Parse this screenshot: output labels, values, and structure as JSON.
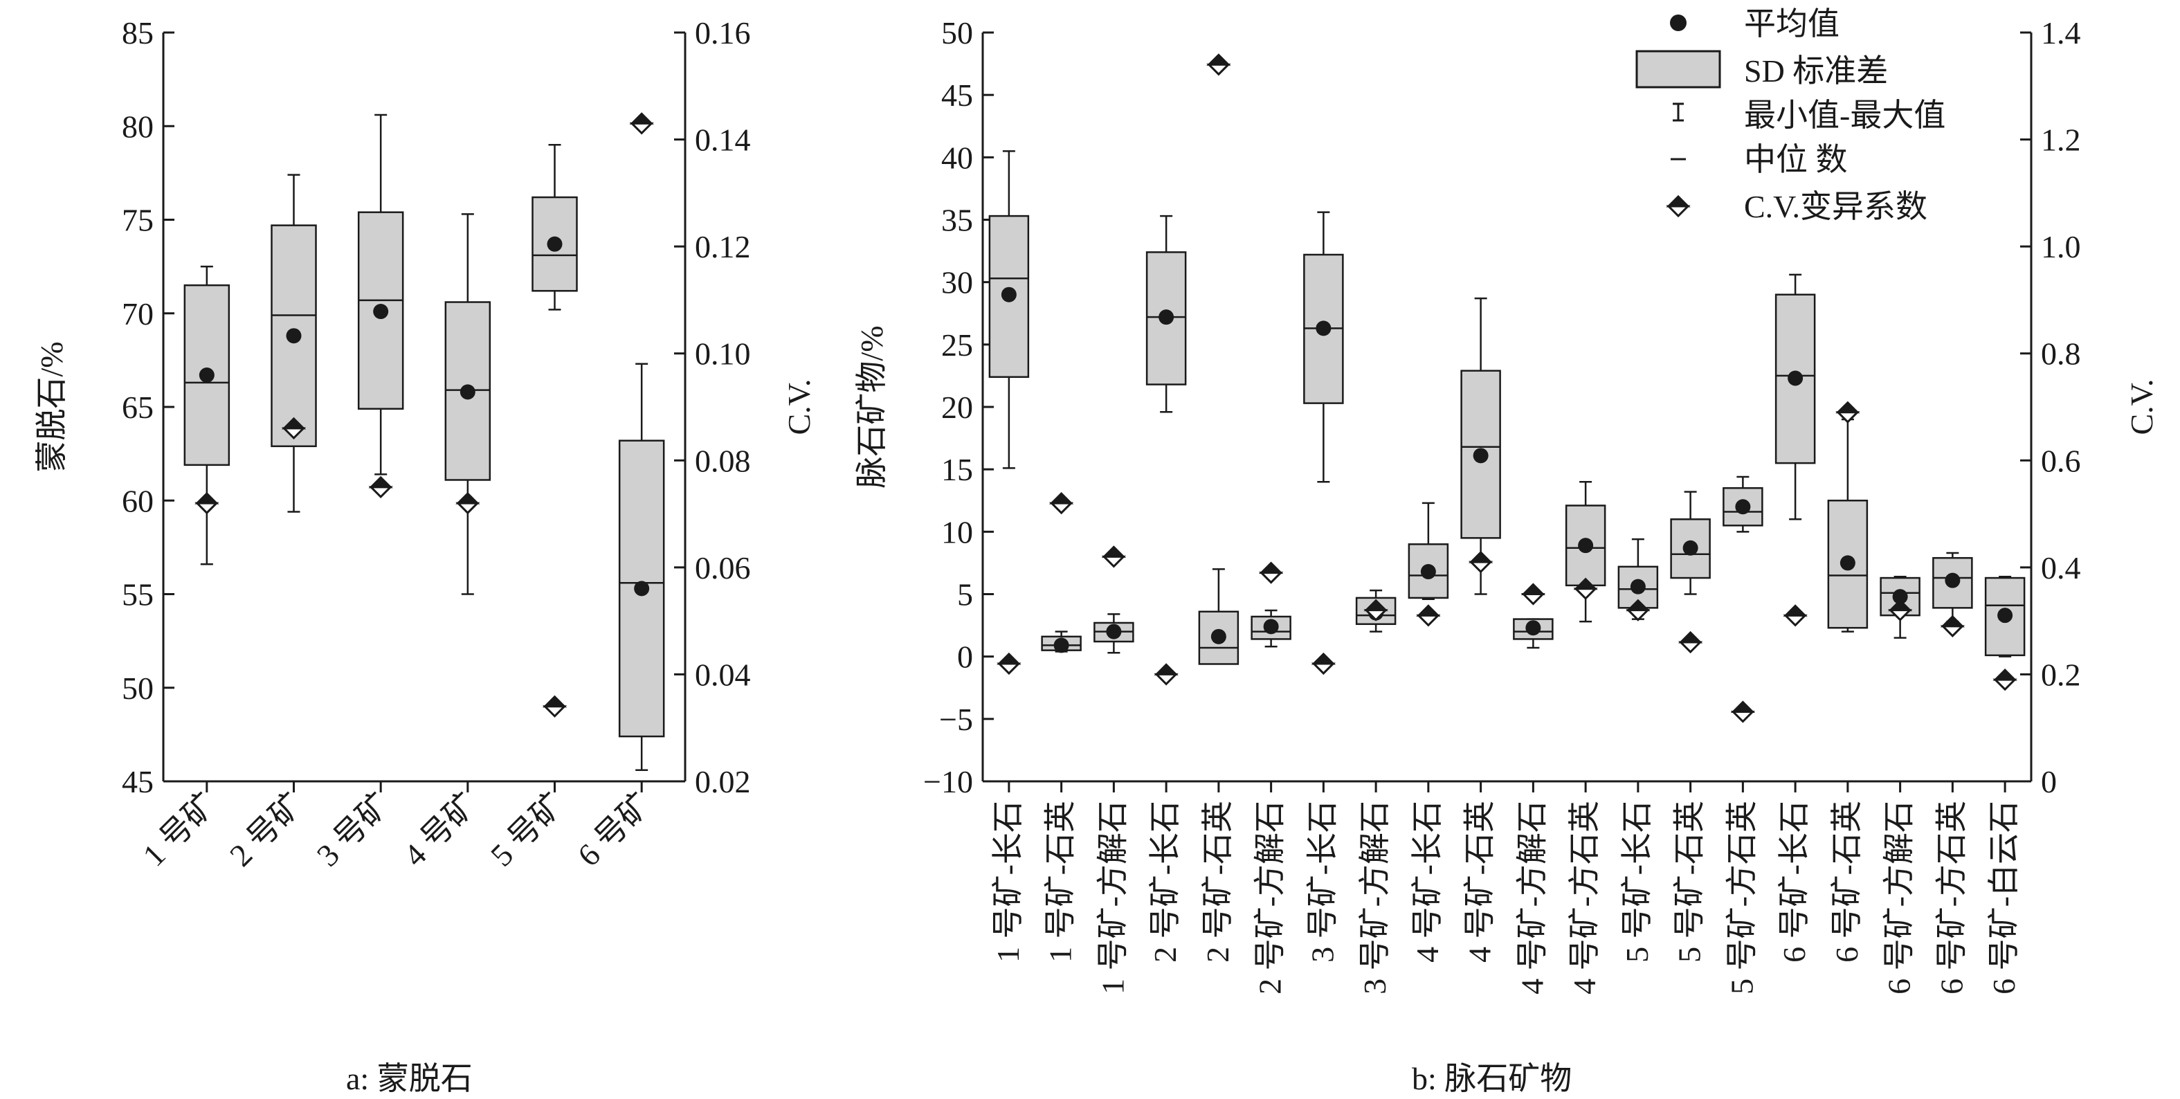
{
  "legend": {
    "mean": "平均值",
    "sd": "SD 标准差",
    "range": "最小值-最大值",
    "median": "中位 数",
    "cv": "C.V.变异系数"
  },
  "captions": {
    "a": "a: 蒙脱石",
    "b": "b: 脉石矿物"
  },
  "colors": {
    "box_fill": "#d0d0d0",
    "ink": "#1a1a1a"
  },
  "chart_data": [
    {
      "type": "box",
      "ylabel": "蒙脱石/%",
      "y2label": "C.V.",
      "ylim": [
        45,
        85
      ],
      "y2lim": [
        0.02,
        0.16
      ],
      "yticks": [
        45,
        50,
        55,
        60,
        65,
        70,
        75,
        80,
        85
      ],
      "y2ticks": [
        "0.02",
        "0.04",
        "0.06",
        "0.08",
        "0.10",
        "0.12",
        "0.14",
        "0.16"
      ],
      "categories": [
        "1 号矿",
        "2 号矿",
        "3 号矿",
        "4 号矿",
        "5 号矿",
        "6 号矿"
      ],
      "min": [
        56.6,
        59.4,
        61.4,
        55.0,
        70.2,
        45.6
      ],
      "max": [
        72.5,
        77.4,
        80.6,
        75.3,
        79.0,
        67.3
      ],
      "box_low": [
        61.9,
        62.9,
        64.9,
        61.1,
        71.2,
        47.4
      ],
      "box_high": [
        71.5,
        74.7,
        75.4,
        70.6,
        76.2,
        63.2
      ],
      "median": [
        66.3,
        69.9,
        70.7,
        65.9,
        73.1,
        55.6
      ],
      "mean": [
        66.7,
        68.8,
        70.1,
        65.8,
        73.7,
        55.3
      ],
      "cv": [
        0.072,
        0.086,
        0.075,
        0.072,
        0.034,
        0.143
      ]
    },
    {
      "type": "box",
      "ylabel": "脉石矿物/%",
      "y2label": "C.V.",
      "ylim": [
        -10,
        50
      ],
      "y2lim": [
        0,
        1.4
      ],
      "yticks": [
        -10,
        -5,
        0,
        5,
        10,
        15,
        20,
        25,
        30,
        35,
        40,
        45,
        50
      ],
      "ytick_labels": [
        "−10",
        "−5",
        "0",
        "5",
        "10",
        "15",
        "20",
        "25",
        "30",
        "35",
        "40",
        "45",
        "50"
      ],
      "y2ticks": [
        "0",
        "0.2",
        "0.4",
        "0.6",
        "0.8",
        "1.0",
        "1.2",
        "1.4"
      ],
      "categories": [
        [
          "1 号矿",
          "-长石"
        ],
        [
          "1 号矿",
          "-石英"
        ],
        [
          "1 号矿",
          "-方解石"
        ],
        [
          "2 号矿",
          "-长石"
        ],
        [
          "2 号矿",
          "-石英"
        ],
        [
          "2 号矿",
          "-方解石"
        ],
        [
          "3 号矿",
          "-长石"
        ],
        [
          "3 号矿",
          "-方解石"
        ],
        [
          "4 号矿",
          "-长石"
        ],
        [
          "4 号矿",
          "-石英"
        ],
        [
          "4 号矿",
          "-方解石"
        ],
        [
          "4 号矿",
          "-方石英"
        ],
        [
          "5 号矿",
          "-长石"
        ],
        [
          "5 号矿",
          "-石英"
        ],
        [
          "5 号矿",
          "-方石英"
        ],
        [
          "6 号矿",
          "-长石"
        ],
        [
          "6 号矿",
          "-石英"
        ],
        [
          "6 号矿",
          "-方解石"
        ],
        [
          "6 号矿",
          "-方石英"
        ],
        [
          "6 号矿",
          "-白云石"
        ]
      ],
      "min": [
        15.1,
        0.4,
        0.3,
        19.6,
        0.0,
        0.8,
        14.0,
        2.0,
        4.6,
        5.0,
        0.7,
        2.8,
        3.0,
        5.0,
        10.0,
        11.0,
        2.0,
        1.5,
        2.8,
        0.0
      ],
      "max": [
        40.5,
        2.0,
        3.4,
        35.3,
        7.0,
        3.7,
        35.6,
        5.3,
        12.3,
        28.7,
        3.0,
        14.0,
        9.4,
        13.2,
        14.4,
        30.6,
        19.0,
        6.4,
        8.3,
        6.4
      ],
      "box_low": [
        22.4,
        0.5,
        1.2,
        21.8,
        -0.6,
        1.4,
        20.3,
        2.6,
        4.7,
        9.5,
        1.4,
        5.7,
        3.9,
        6.3,
        10.5,
        15.5,
        2.3,
        3.3,
        3.9,
        0.1
      ],
      "box_high": [
        35.3,
        1.6,
        2.7,
        32.4,
        3.6,
        3.2,
        32.2,
        4.7,
        9.0,
        22.9,
        3.0,
        12.1,
        7.2,
        11.0,
        13.5,
        29.0,
        12.5,
        6.3,
        7.9,
        6.3
      ],
      "median": [
        30.3,
        0.9,
        2.0,
        27.2,
        0.7,
        2.0,
        26.3,
        3.3,
        6.5,
        16.8,
        2.0,
        8.7,
        5.4,
        8.2,
        11.6,
        22.5,
        6.5,
        5.1,
        6.3,
        4.1
      ],
      "mean": [
        29.0,
        0.9,
        2.0,
        27.2,
        1.6,
        2.4,
        26.3,
        3.5,
        6.8,
        16.1,
        2.3,
        8.9,
        5.6,
        8.7,
        12.0,
        22.3,
        7.5,
        4.8,
        6.1,
        3.3
      ],
      "cv": [
        0.22,
        0.52,
        0.42,
        0.2,
        1.34,
        0.39,
        0.22,
        0.32,
        0.31,
        0.41,
        0.35,
        0.36,
        0.32,
        0.26,
        0.13,
        0.31,
        0.69,
        0.32,
        0.29,
        0.19
      ]
    }
  ]
}
